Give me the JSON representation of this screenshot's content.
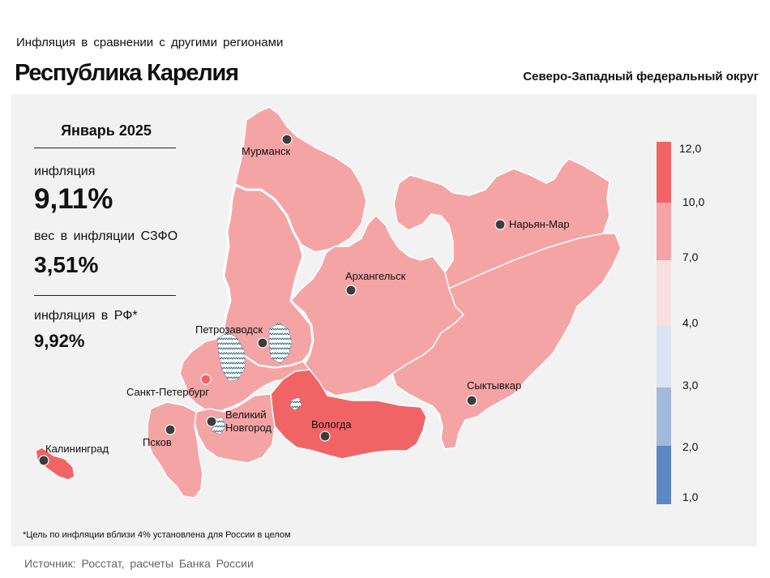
{
  "header": {
    "subtitle": "Инфляция  в сравнении  с другими  регионами",
    "title": "Республика Карелия",
    "district": "Северо-Западный федеральный округ"
  },
  "stats": {
    "period": "Январь 2025",
    "inflation_label": "инфляция",
    "inflation_value": "9,11%",
    "weight_label": "вес в инфляции  СЗФО",
    "weight_value": "3,51%",
    "rf_label": "инфляция  в РФ*",
    "rf_value": "9,92%"
  },
  "cities": {
    "murmansk": "Мурманск",
    "naryan_mar": "Нарьян-Мар",
    "arkhangelsk": "Архангельск",
    "petrozavodsk": "Петрозаводск",
    "spb": "Санкт-Петербург",
    "syktyvkar": "Сыктывкар",
    "vel_novgorod_1": "Великий",
    "vel_novgorod_2": "Новгород",
    "vologda": "Вологда",
    "pskov": "Псков",
    "kaliningrad": "Калининград"
  },
  "legend": {
    "ticks": [
      "12,0",
      "10,0",
      "7,0",
      "4,0",
      "3,0",
      "2,0",
      "1,0"
    ],
    "colors": [
      "#f16465",
      "#f5a4a5",
      "#f8dfe0",
      "#dae4f3",
      "#a1b9dc",
      "#5c88c4"
    ]
  },
  "colors": {
    "panel_bg": "#f2f2f2",
    "range_7_10": "#f5a4a5",
    "range_10_12": "#f16465",
    "selected_outline": "#ffffff"
  },
  "note": "*Цель по инфляции вблизи 4% установлена для России в целом",
  "source": "Источник:  Росстат,  расчеты Банка  России"
}
